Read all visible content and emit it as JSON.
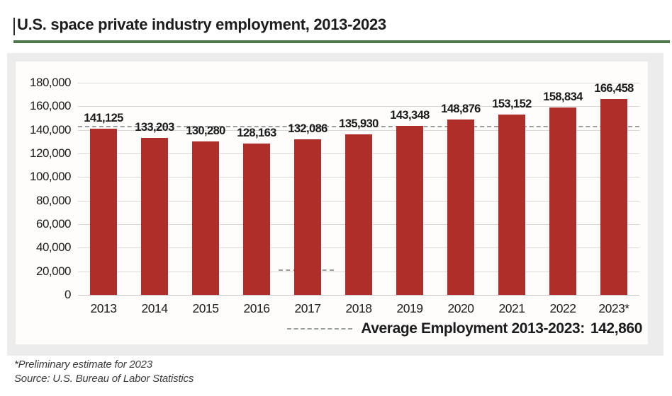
{
  "title": "U.S. space private industry employment, 2013-2023",
  "footnotes": [
    "*Preliminary estimate for 2023",
    "Source: U.S. Bureau of Labor Statistics"
  ],
  "legend": {
    "label": "Average Employment 2013-2023:",
    "value": "142,860"
  },
  "chart_data": {
    "type": "bar",
    "title": "U.S. space private industry employment, 2013-2023",
    "categories": [
      "2013",
      "2014",
      "2015",
      "2016",
      "2017",
      "2018",
      "2019",
      "2020",
      "2021",
      "2022",
      "2023*"
    ],
    "values": [
      141125,
      133203,
      130280,
      128163,
      132086,
      135930,
      143348,
      148876,
      153152,
      158834,
      166458
    ],
    "value_labels": [
      "141,125",
      "133,203",
      "130,280",
      "128,163",
      "132,086",
      "135,930",
      "143,348",
      "148,876",
      "153,152",
      "158,834",
      "166,458"
    ],
    "xlabel": "",
    "ylabel": "",
    "ylim": [
      0,
      180000
    ],
    "y_tick_values": [
      0,
      20000,
      40000,
      60000,
      80000,
      100000,
      120000,
      140000,
      160000,
      180000
    ],
    "y_tick_labels": [
      "0",
      "20,000",
      "40,000",
      "60,000",
      "80,000",
      "100,000",
      "120,000",
      "140,000",
      "160,000",
      "180,000"
    ],
    "grid": true,
    "legend_position": "bottom-right",
    "average_line": {
      "value": 142860,
      "label": "Average Employment 2013-2023:",
      "value_label": "142,860"
    },
    "colors": {
      "bar": "#b02e2a",
      "grid": "#d8d8d8",
      "average_dash": "#9aa0a0",
      "title_rule": "#4c774c",
      "text": "#1c1c1e"
    }
  }
}
